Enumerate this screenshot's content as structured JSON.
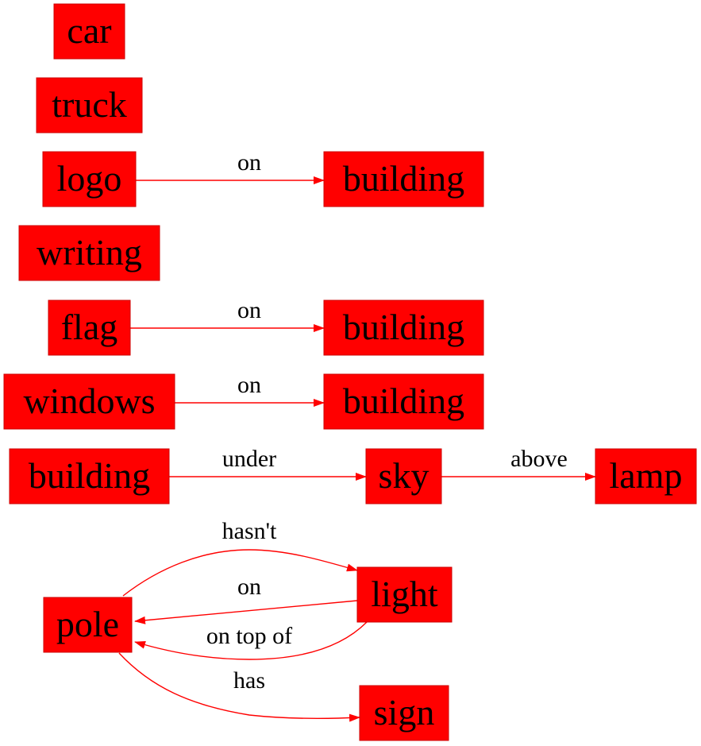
{
  "diagram": {
    "colors": {
      "node_fill": "#ff0000",
      "edge": "#ff0000",
      "text": "#000000",
      "background": "#ffffff"
    },
    "nodes": {
      "car": "car",
      "truck": "truck",
      "logo": "logo",
      "building_1": "building",
      "writing": "writing",
      "flag": "flag",
      "building_2": "building",
      "windows": "windows",
      "building_3": "building",
      "building_4": "building",
      "sky": "sky",
      "lamp": "lamp",
      "pole": "pole",
      "light": "light",
      "sign": "sign"
    },
    "edges": [
      {
        "from": "logo",
        "to": "building_1",
        "label": "on"
      },
      {
        "from": "flag",
        "to": "building_2",
        "label": "on"
      },
      {
        "from": "windows",
        "to": "building_3",
        "label": "on"
      },
      {
        "from": "building_4",
        "to": "sky",
        "label": "under"
      },
      {
        "from": "sky",
        "to": "lamp",
        "label": "above"
      },
      {
        "from": "pole",
        "to": "light",
        "label": "hasn't"
      },
      {
        "from": "light",
        "to": "pole",
        "label": "on"
      },
      {
        "from": "light",
        "to": "pole",
        "label": "on top of"
      },
      {
        "from": "pole",
        "to": "sign",
        "label": "has"
      }
    ]
  }
}
